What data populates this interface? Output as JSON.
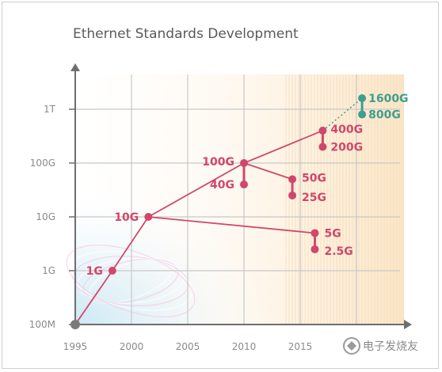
{
  "chart_data": {
    "type": "line",
    "title": "Ethernet Standards Development",
    "x_ticks": [
      1995,
      2000,
      2005,
      2010,
      2015
    ],
    "y_ticks": [
      "100M",
      "1G",
      "10G",
      "100G",
      "1T"
    ],
    "y_scale": "log",
    "grid": true,
    "main_line": {
      "color": "#d1476b",
      "points": [
        {
          "x": 1995,
          "speed": "100M"
        },
        {
          "x": 1998.3,
          "speed": "1G"
        },
        {
          "x": 2001.5,
          "speed": "10G"
        },
        {
          "x": 2010,
          "speed": "100G"
        },
        {
          "x": 2017,
          "speed": "400G"
        }
      ]
    },
    "future_line": {
      "color": "#3f9e8d",
      "style": "dotted",
      "from": {
        "x": 2017,
        "speed": "400G"
      },
      "to": {
        "x": 2020.5,
        "speed": "1600G"
      }
    },
    "branches": [
      {
        "from_x": 2001.5,
        "from_speed": "10G",
        "to_x": 2016.3,
        "to_speed": "5G",
        "color": "#d1476b"
      },
      {
        "from_x": 2010,
        "from_speed": "100G",
        "to_x": 2014.3,
        "to_speed": "50G",
        "color": "#d1476b"
      }
    ],
    "stacks": [
      {
        "x": 2010,
        "top": "100G",
        "bottom": "40G",
        "color": "#d1476b"
      },
      {
        "x": 2014.3,
        "top": "50G",
        "bottom": "25G",
        "color": "#d1476b"
      },
      {
        "x": 2016.3,
        "top": "5G",
        "bottom": "2.5G",
        "color": "#d1476b"
      },
      {
        "x": 2017,
        "top": "400G",
        "bottom": "200G",
        "color": "#d1476b"
      },
      {
        "x": 2020.5,
        "top": "1600G",
        "bottom": "800G",
        "color": "#3f9e8d"
      }
    ],
    "labels": [
      {
        "text": "1G",
        "x": 1998.3,
        "speed": "1G",
        "color": "#d1476b"
      },
      {
        "text": "10G",
        "x": 2001.5,
        "speed": "10G",
        "color": "#d1476b"
      },
      {
        "text": "100G",
        "x": 2010,
        "speed": "100G",
        "color": "#d1476b"
      },
      {
        "text": "40G",
        "x": 2010,
        "speed": "40G",
        "color": "#d1476b"
      },
      {
        "text": "50G",
        "x": 2014.3,
        "speed": "50G",
        "color": "#d1476b"
      },
      {
        "text": "25G",
        "x": 2014.3,
        "speed": "25G",
        "color": "#d1476b"
      },
      {
        "text": "5G",
        "x": 2016.3,
        "speed": "5G",
        "color": "#d1476b"
      },
      {
        "text": "2.5G",
        "x": 2016.3,
        "speed": "2.5G",
        "color": "#d1476b"
      },
      {
        "text": "400G",
        "x": 2017,
        "speed": "400G",
        "color": "#d1476b"
      },
      {
        "text": "200G",
        "x": 2017,
        "speed": "200G",
        "color": "#d1476b"
      },
      {
        "text": "1600G",
        "x": 2020.5,
        "speed": "1600G",
        "color": "#3f9e8d"
      },
      {
        "text": "800G",
        "x": 2020.5,
        "speed": "800G",
        "color": "#3f9e8d"
      }
    ]
  },
  "watermark": "电子发烧友"
}
